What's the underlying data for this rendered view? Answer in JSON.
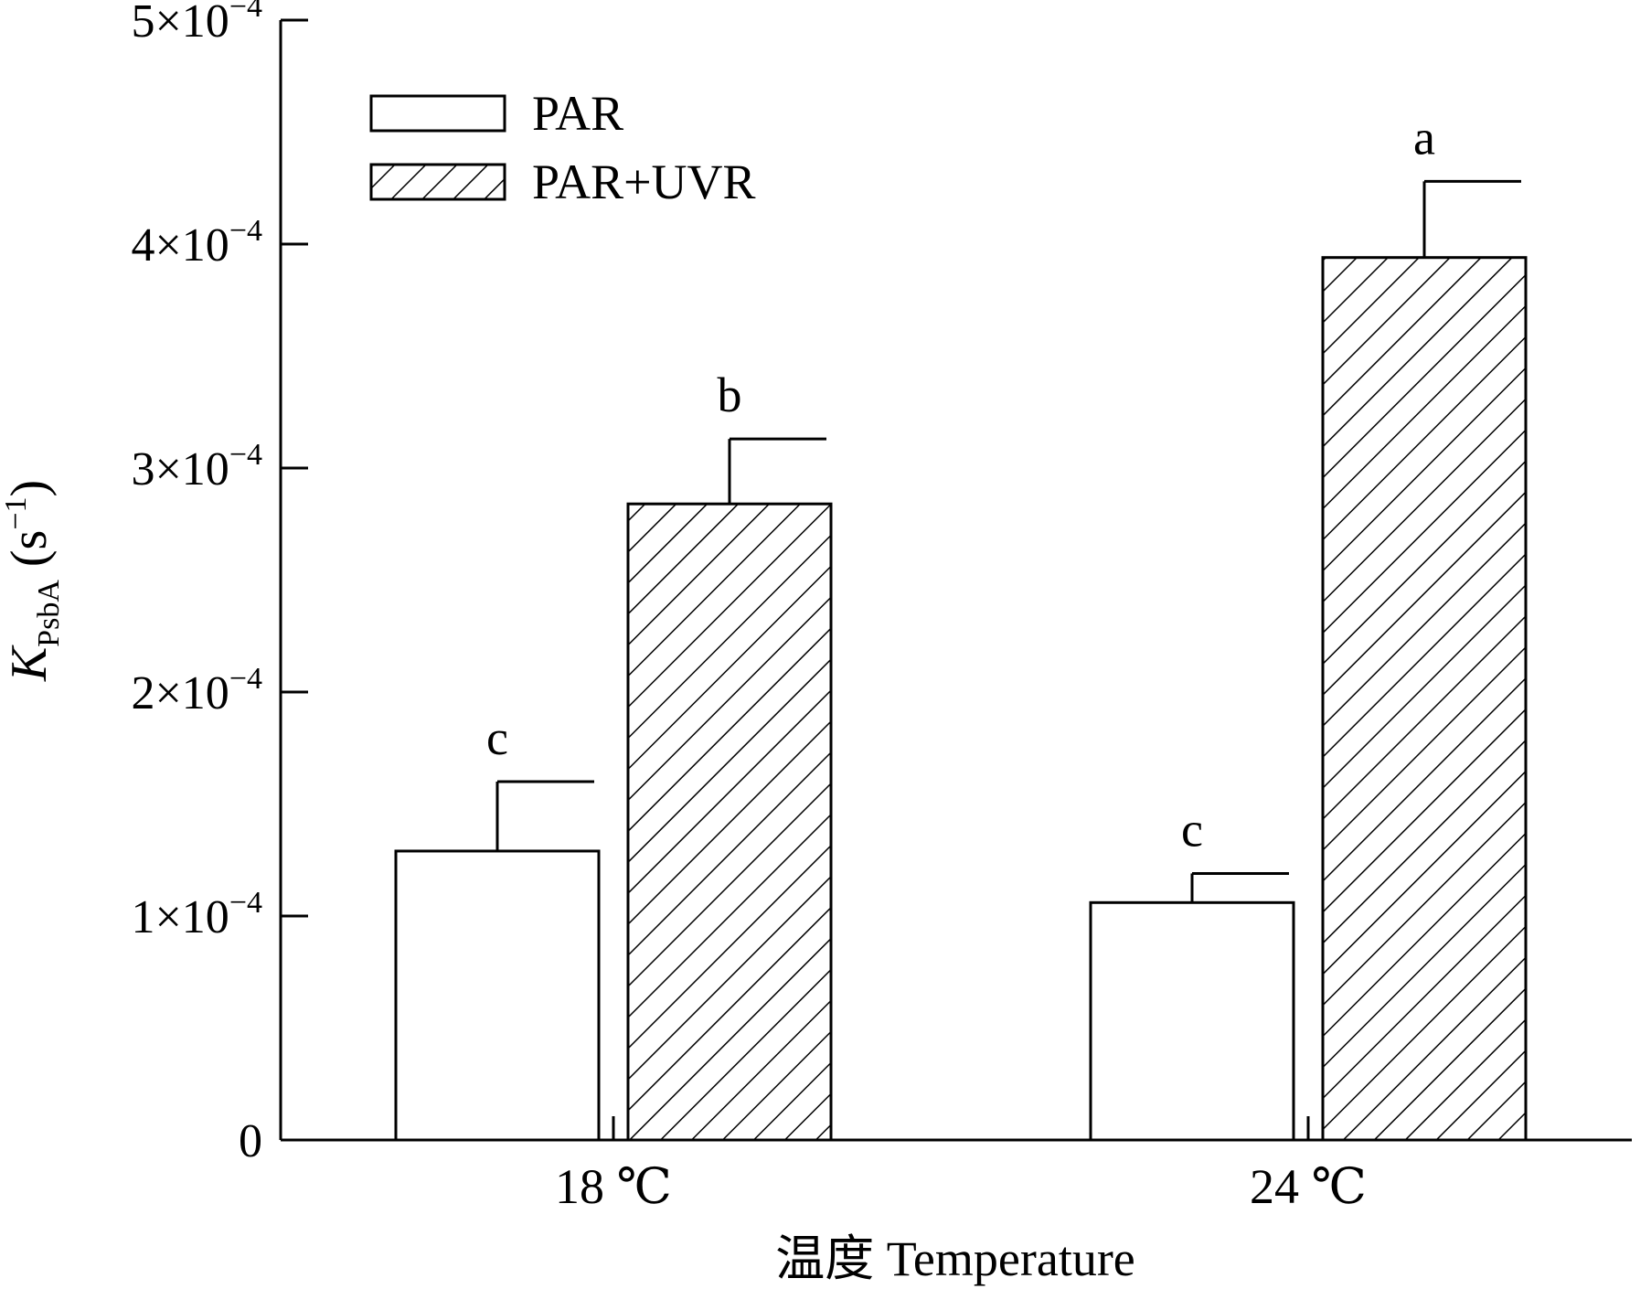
{
  "chart_data": {
    "type": "bar",
    "title": "",
    "xlabel": "温度 Temperature",
    "ylabel": {
      "main": "K",
      "sub": "PsbA",
      "unit_open": " (s",
      "unit_sup": "−1",
      "unit_close": ")"
    },
    "categories": [
      "18 ℃",
      "24 ℃"
    ],
    "ylim": [
      0,
      0.0005
    ],
    "yticks": [
      {
        "value": 0,
        "label": "0",
        "mant": "",
        "sup": ""
      },
      {
        "value": 0.0001,
        "label": "",
        "mant": "1×10",
        "sup": "−4"
      },
      {
        "value": 0.0002,
        "label": "",
        "mant": "2×10",
        "sup": "−4"
      },
      {
        "value": 0.0003,
        "label": "",
        "mant": "3×10",
        "sup": "−4"
      },
      {
        "value": 0.0004,
        "label": "",
        "mant": "4×10",
        "sup": "−4"
      },
      {
        "value": 0.0005,
        "label": "",
        "mant": "5×10",
        "sup": "−4"
      }
    ],
    "series": [
      {
        "name": "PAR",
        "pattern": "none",
        "values": [
          0.000129,
          0.000106
        ],
        "errors": [
          3.1e-05,
          1.3e-05
        ],
        "labels": [
          "c",
          "c"
        ]
      },
      {
        "name": "PAR+UVR",
        "pattern": "hatch",
        "values": [
          0.000284,
          0.000394
        ],
        "errors": [
          2.9e-05,
          3.4e-05
        ],
        "labels": [
          "b",
          "a"
        ]
      }
    ],
    "legend_position": "top-left",
    "grid": false,
    "colors": {
      "stroke": "#000000",
      "fill": "#ffffff"
    }
  }
}
